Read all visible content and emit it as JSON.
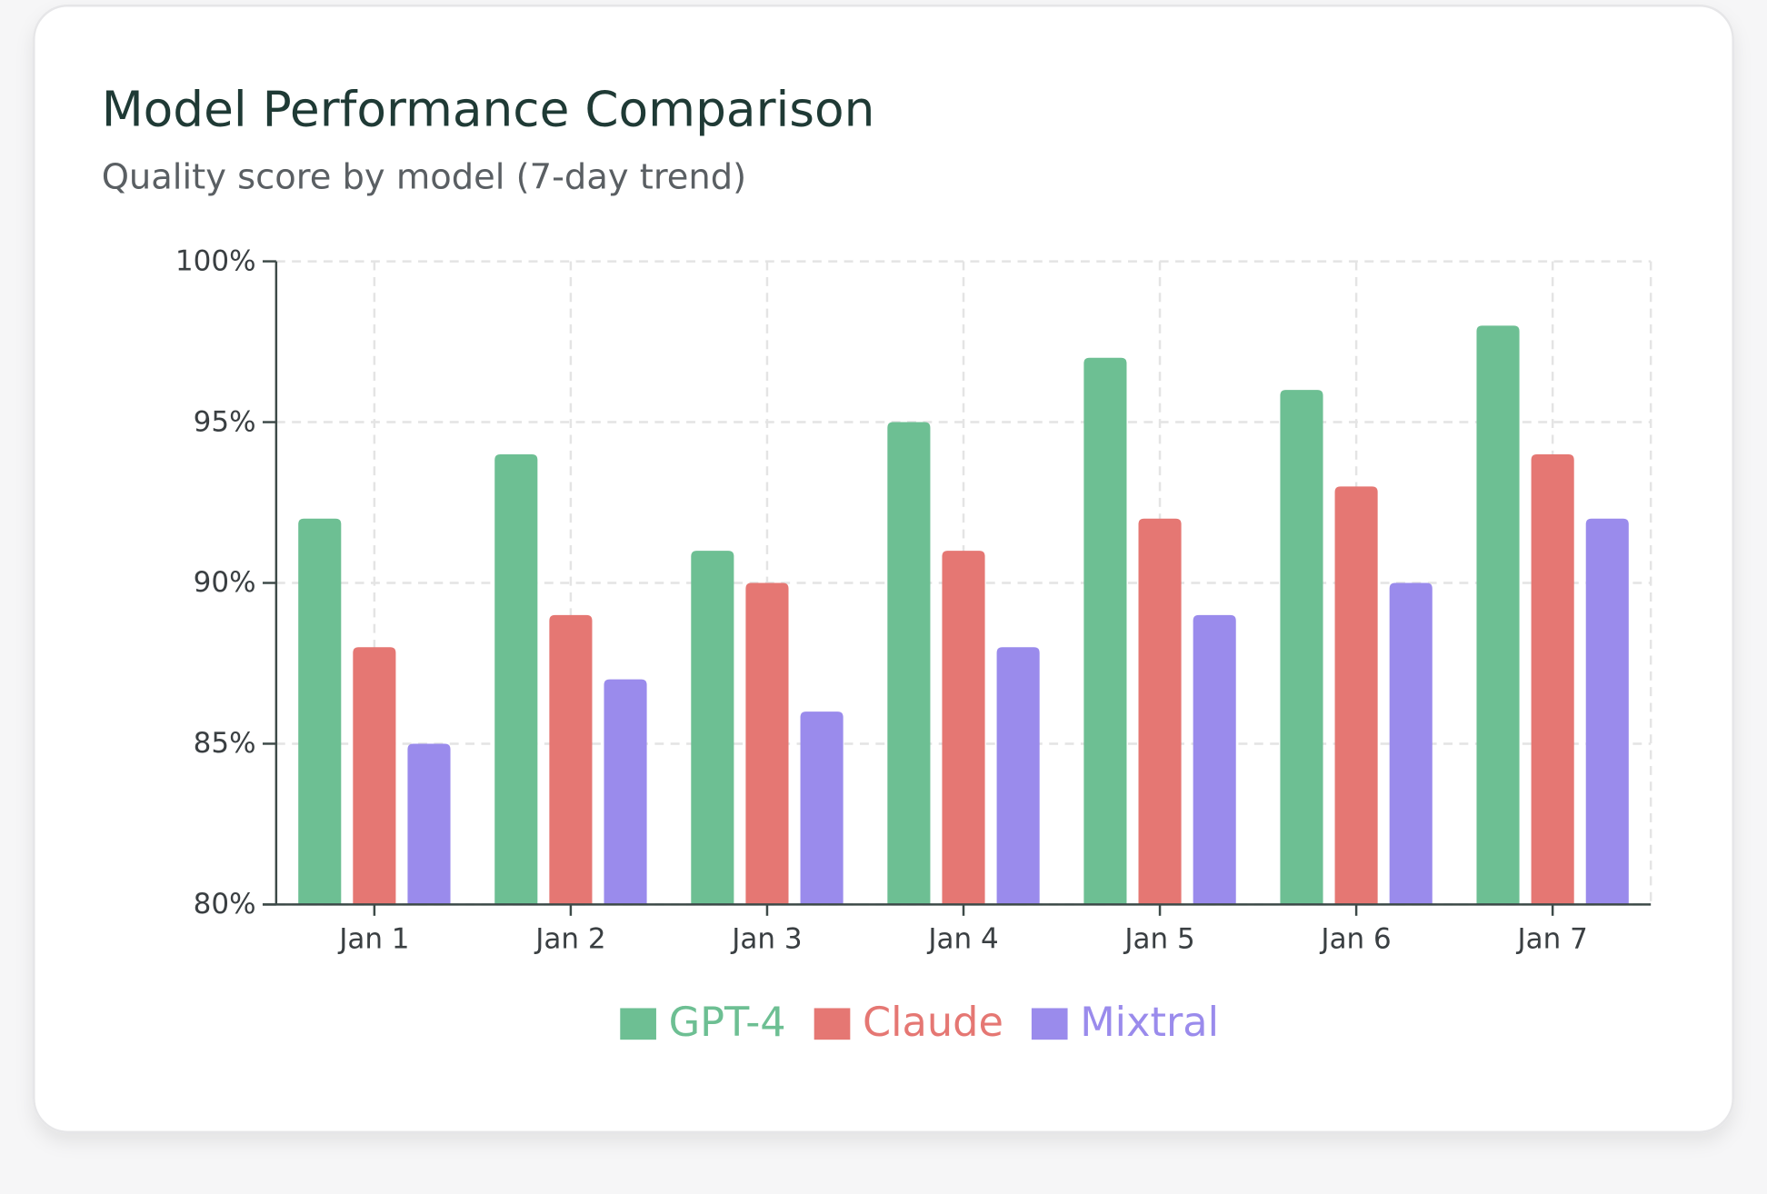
{
  "chart_data": {
    "type": "bar",
    "title": "Model Performance Comparison",
    "subtitle": "Quality score by model (7-day trend)",
    "categories": [
      "Jan 1",
      "Jan 2",
      "Jan 3",
      "Jan 4",
      "Jan 5",
      "Jan 6",
      "Jan 7"
    ],
    "series": [
      {
        "name": "GPT-4",
        "color": "#6dbf93",
        "values": [
          92,
          94,
          91,
          95,
          97,
          96,
          98
        ]
      },
      {
        "name": "Claude",
        "color": "#e57773",
        "values": [
          88,
          89,
          90,
          91,
          92,
          93,
          94
        ]
      },
      {
        "name": "Mixtral",
        "color": "#9a8bec",
        "values": [
          85,
          87,
          86,
          88,
          89,
          90,
          92
        ]
      }
    ],
    "ylim": [
      80,
      100
    ],
    "yticks": [
      {
        "value": 80,
        "label": "80%"
      },
      {
        "value": 85,
        "label": "85%"
      },
      {
        "value": 90,
        "label": "90%"
      },
      {
        "value": 95,
        "label": "95%"
      },
      {
        "value": 100,
        "label": "100%"
      }
    ],
    "grid": true,
    "legend": "bottom"
  }
}
